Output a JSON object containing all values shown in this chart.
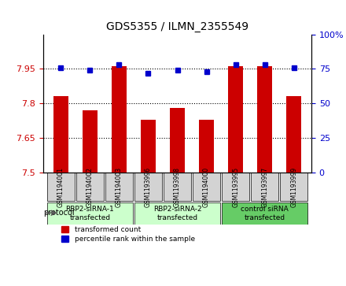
{
  "title": "GDS5355 / ILMN_2355549",
  "samples": [
    "GSM1194001",
    "GSM1194002",
    "GSM1194003",
    "GSM1193996",
    "GSM1193998",
    "GSM1194000",
    "GSM1193995",
    "GSM1193997",
    "GSM1193999"
  ],
  "red_values": [
    7.83,
    7.77,
    7.96,
    7.73,
    7.78,
    7.73,
    7.96,
    7.96,
    7.83
  ],
  "blue_values": [
    76,
    74,
    78,
    72,
    74,
    73,
    78,
    78,
    76
  ],
  "ylim_left": [
    7.5,
    8.1
  ],
  "ylim_right": [
    0,
    100
  ],
  "yticks_left": [
    7.5,
    7.65,
    7.8,
    7.95
  ],
  "yticks_right": [
    0,
    25,
    50,
    75,
    100
  ],
  "ytick_labels_left": [
    "7.5",
    "7.65",
    "7.8",
    "7.95"
  ],
  "ytick_labels_right": [
    "0",
    "25",
    "50",
    "75",
    "100%"
  ],
  "grid_lines": [
    7.65,
    7.8,
    7.95
  ],
  "red_color": "#cc0000",
  "blue_color": "#0000cc",
  "bar_width": 0.5,
  "protocols": [
    {
      "label": "RBP2-siRNA-1\ntransfected",
      "indices": [
        0,
        1,
        2
      ],
      "color": "#ccffcc"
    },
    {
      "label": "RBP2-siRNA-2\ntransfected",
      "indices": [
        3,
        4,
        5
      ],
      "color": "#ccffcc"
    },
    {
      "label": "control siRNA\ntransfected",
      "indices": [
        6,
        7,
        8
      ],
      "color": "#66cc66"
    }
  ],
  "protocol_label": "protocol",
  "legend_red": "transformed count",
  "legend_blue": "percentile rank within the sample",
  "bg_color": "#ffffff",
  "sample_box_color": "#d3d3d3",
  "left_tick_color": "#cc0000",
  "right_tick_color": "#0000cc"
}
